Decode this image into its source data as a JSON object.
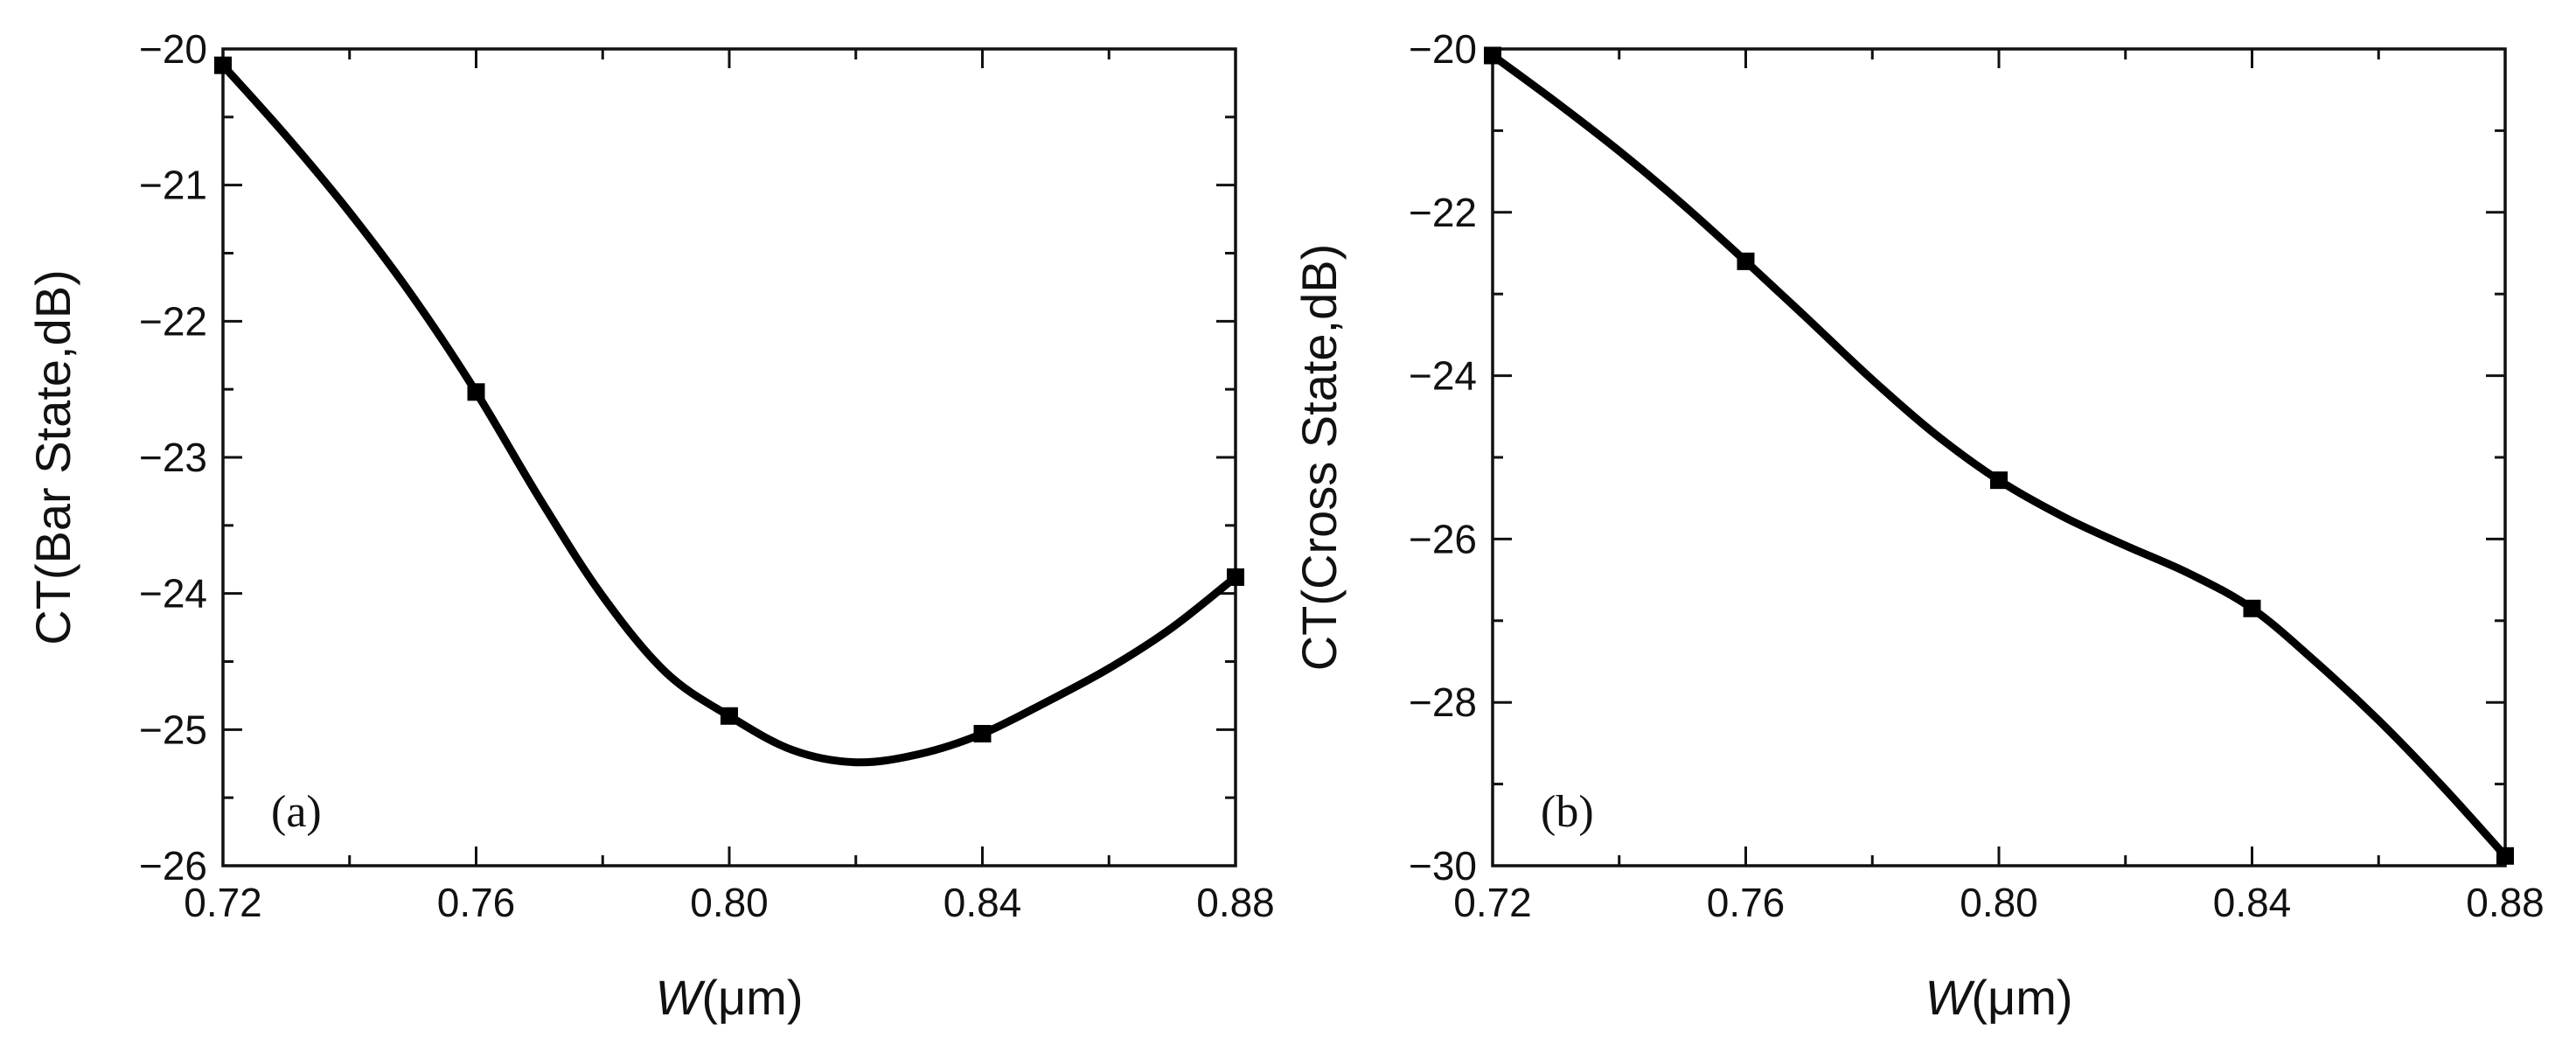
{
  "chart_data": [
    {
      "type": "line",
      "panel_label": "(a)",
      "xlabel_italic": "W",
      "xlabel_rest": "(μm)",
      "ylabel": "CT(Bar State,dB)",
      "xlim": [
        0.72,
        0.88
      ],
      "ylim": [
        -26,
        -20
      ],
      "x_ticks": [
        0.72,
        0.76,
        0.8,
        0.84,
        0.88
      ],
      "x_tick_labels": [
        "0.72",
        "0.76",
        "0.80",
        "0.84",
        "0.88"
      ],
      "y_ticks": [
        -20,
        -21,
        -22,
        -23,
        -24,
        -25,
        -26
      ],
      "y_tick_labels": [
        "−20",
        "−21",
        "−22",
        "−23",
        "−24",
        "−25",
        "−26"
      ],
      "x_minor_step": 0.02,
      "y_minor_step": 0.5,
      "grid": false,
      "marker": "square",
      "x": [
        0.72,
        0.76,
        0.8,
        0.84,
        0.88
      ],
      "y": [
        -20.12,
        -22.52,
        -24.9,
        -25.03,
        -23.88
      ],
      "curve": [
        [
          0.72,
          -20.12
        ],
        [
          0.73,
          -20.64
        ],
        [
          0.74,
          -21.2
        ],
        [
          0.75,
          -21.82
        ],
        [
          0.76,
          -22.52
        ],
        [
          0.77,
          -23.3
        ],
        [
          0.78,
          -24.02
        ],
        [
          0.79,
          -24.58
        ],
        [
          0.8,
          -24.9
        ],
        [
          0.81,
          -25.15
        ],
        [
          0.82,
          -25.24
        ],
        [
          0.83,
          -25.18
        ],
        [
          0.84,
          -25.03
        ],
        [
          0.85,
          -24.8
        ],
        [
          0.86,
          -24.55
        ],
        [
          0.87,
          -24.25
        ],
        [
          0.88,
          -23.88
        ]
      ]
    },
    {
      "type": "line",
      "panel_label": "(b)",
      "xlabel_italic": "W",
      "xlabel_rest": "(μm)",
      "ylabel": "CT(Cross State,dB)",
      "xlim": [
        0.72,
        0.88
      ],
      "ylim": [
        -30,
        -20
      ],
      "x_ticks": [
        0.72,
        0.76,
        0.8,
        0.84,
        0.88
      ],
      "x_tick_labels": [
        "0.72",
        "0.76",
        "0.80",
        "0.84",
        "0.88"
      ],
      "y_ticks": [
        -20,
        -22,
        -24,
        -26,
        -28,
        -30
      ],
      "y_tick_labels": [
        "−20",
        "−22",
        "−24",
        "−26",
        "−28",
        "−30"
      ],
      "x_minor_step": 0.02,
      "y_minor_step": 1,
      "grid": false,
      "marker": "square",
      "x": [
        0.72,
        0.76,
        0.8,
        0.84,
        0.88
      ],
      "y": [
        -20.08,
        -22.6,
        -25.28,
        -26.85,
        -29.88
      ],
      "curve": [
        [
          0.72,
          -20.08
        ],
        [
          0.73,
          -20.65
        ],
        [
          0.74,
          -21.25
        ],
        [
          0.75,
          -21.9
        ],
        [
          0.76,
          -22.6
        ],
        [
          0.77,
          -23.32
        ],
        [
          0.78,
          -24.05
        ],
        [
          0.79,
          -24.72
        ],
        [
          0.8,
          -25.28
        ],
        [
          0.81,
          -25.72
        ],
        [
          0.82,
          -26.08
        ],
        [
          0.83,
          -26.42
        ],
        [
          0.84,
          -26.85
        ],
        [
          0.85,
          -27.5
        ],
        [
          0.86,
          -28.22
        ],
        [
          0.87,
          -29.02
        ],
        [
          0.88,
          -29.88
        ]
      ]
    }
  ]
}
